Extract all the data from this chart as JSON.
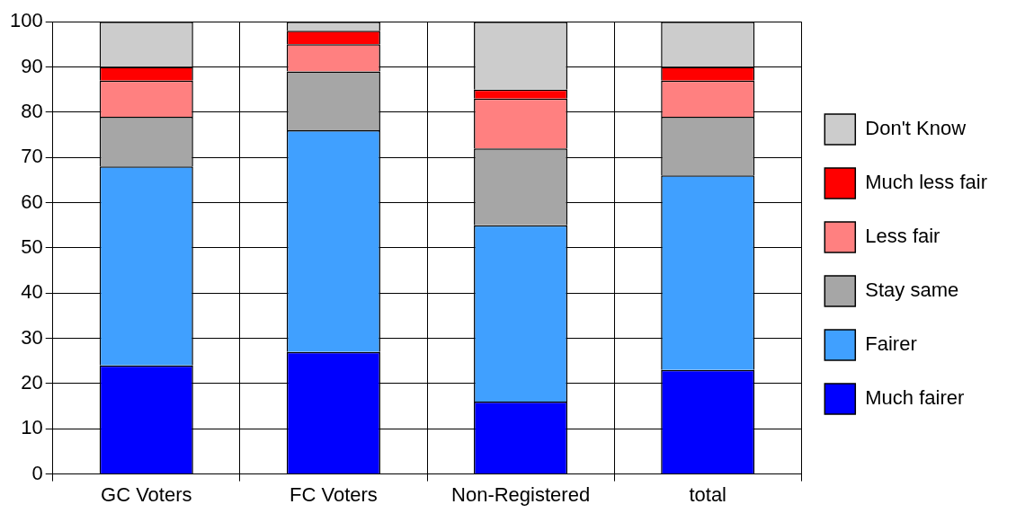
{
  "chart_data": {
    "type": "bar",
    "stacked": true,
    "categories": [
      "GC Voters",
      "FC Voters",
      "Non-Registered",
      "total"
    ],
    "series": [
      {
        "name": "Much fairer",
        "color": "#0000ff",
        "values": [
          24,
          27,
          16,
          23
        ]
      },
      {
        "name": "Fairer",
        "color": "#40a0ff",
        "values": [
          44,
          49,
          39,
          43
        ]
      },
      {
        "name": "Stay same",
        "color": "#a6a6a6",
        "values": [
          11,
          13,
          17,
          13
        ]
      },
      {
        "name": "Less fair",
        "color": "#ff8080",
        "values": [
          8,
          6,
          11,
          8
        ]
      },
      {
        "name": "Much less fair",
        "color": "#ff0000",
        "values": [
          3,
          3,
          2,
          3
        ]
      },
      {
        "name": "Don't Know",
        "color": "#cccccc",
        "values": [
          10,
          2,
          15,
          10
        ]
      }
    ],
    "ylim": [
      0,
      100
    ],
    "yticks": [
      0,
      10,
      20,
      30,
      40,
      50,
      60,
      70,
      80,
      90,
      100
    ],
    "grid": true,
    "legend": "right"
  }
}
